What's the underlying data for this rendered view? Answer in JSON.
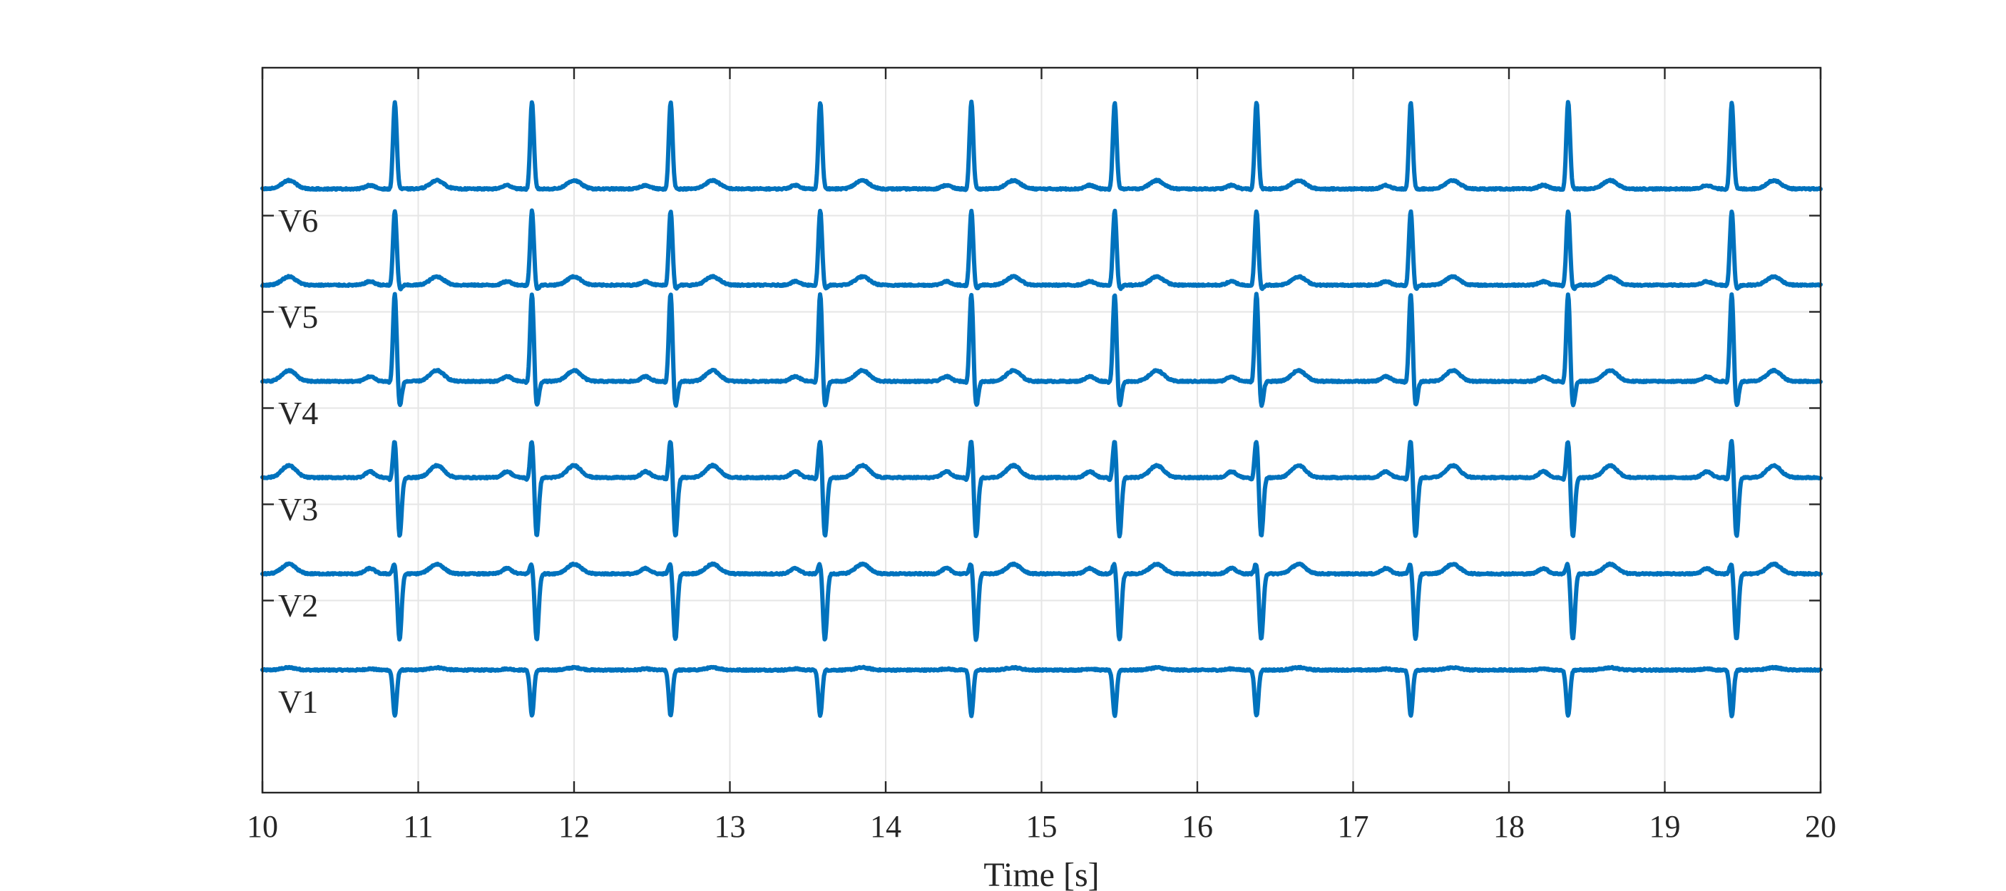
{
  "chart_data": {
    "type": "line",
    "title": "",
    "xlabel": "Time [s]",
    "ylabel": "",
    "xlim": [
      10,
      20
    ],
    "ylim": [
      0,
      6
    ],
    "x_ticks": [
      "10",
      "11",
      "12",
      "13",
      "14",
      "15",
      "16",
      "17",
      "18",
      "19",
      "20"
    ],
    "grid": true,
    "legend": "none",
    "line_color": "#0072BD",
    "lead_offset_spacing": 1,
    "beat_times": [
      10.85,
      11.73,
      12.62,
      13.58,
      14.55,
      15.47,
      16.38,
      17.37,
      18.38,
      19.43
    ],
    "series": [
      {
        "name": "V1",
        "baseline": 1,
        "r": -0.38,
        "s": 0.0,
        "q": 0.0,
        "t": 0.02,
        "p": 0.02
      },
      {
        "name": "V2",
        "baseline": 1.8,
        "r": 0.1,
        "s": -0.55,
        "q": 0.0,
        "t": 0.08,
        "p": 0.09
      },
      {
        "name": "V3",
        "baseline": 2.6,
        "r": 0.33,
        "s": -0.5,
        "q": -0.03,
        "t": 0.1,
        "p": 0.1
      },
      {
        "name": "V4",
        "baseline": 3.4,
        "r": 0.74,
        "s": -0.22,
        "q": -0.03,
        "t": 0.09,
        "p": 0.08
      },
      {
        "name": "V5",
        "baseline": 4.2,
        "r": 0.62,
        "s": -0.04,
        "q": -0.02,
        "t": 0.07,
        "p": 0.06
      },
      {
        "name": "V6",
        "baseline": 5.0,
        "r": 0.72,
        "s": 0.0,
        "q": -0.02,
        "t": 0.07,
        "p": 0.06
      }
    ]
  }
}
